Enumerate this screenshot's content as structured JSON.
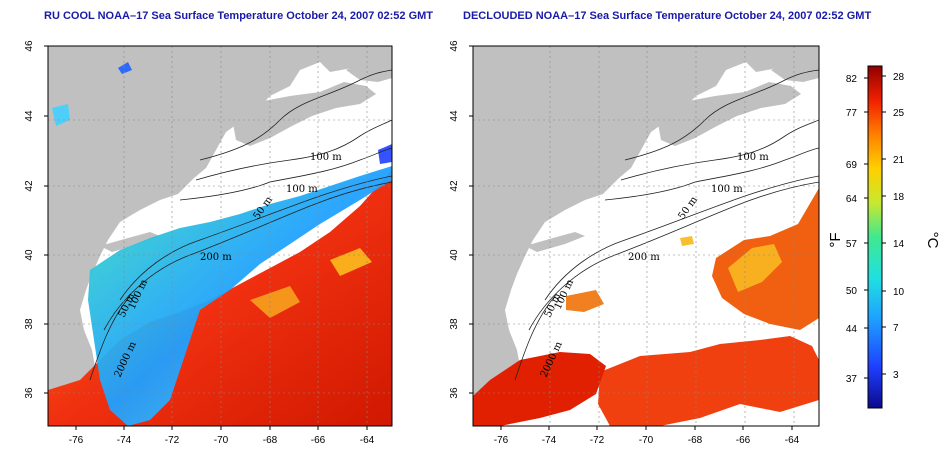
{
  "left_panel": {
    "title": "RU COOL NOAA–17 Sea Surface Temperature October 24, 2007 02:52 GMT",
    "lon_ticks": [
      "-76",
      "-74",
      "-72",
      "-70",
      "-68",
      "-66",
      "-64"
    ],
    "lat_ticks": [
      "46",
      "44",
      "42",
      "40",
      "38",
      "36"
    ],
    "contour_labels": [
      "100 m",
      "100 m",
      "50 m",
      "200 m",
      "50 m",
      "100 m",
      "2000 m"
    ]
  },
  "right_panel": {
    "title": "DECLOUDED NOAA–17 Sea Surface Temperature October 24, 2007 02:52 GMT",
    "lon_ticks": [
      "-76",
      "-74",
      "-72",
      "-70",
      "-68",
      "-66",
      "-64"
    ],
    "lat_ticks": [
      "46",
      "44",
      "42",
      "40",
      "38",
      "36"
    ],
    "contour_labels": [
      "100 m",
      "100 m",
      "50 m",
      "200 m",
      "50 m",
      "100 m",
      "2000 m"
    ]
  },
  "colorbar": {
    "fahrenheit_label": "°F",
    "celsius_label": "°C",
    "fahrenheit_ticks": [
      "82",
      "77",
      "69",
      "64",
      "57",
      "50",
      "44",
      "37"
    ],
    "celsius_ticks": [
      "28",
      "25",
      "21",
      "18",
      "14",
      "10",
      "7",
      "3"
    ]
  },
  "colors": {
    "land": "#c0c0c0",
    "title": "#1a1aa8"
  }
}
